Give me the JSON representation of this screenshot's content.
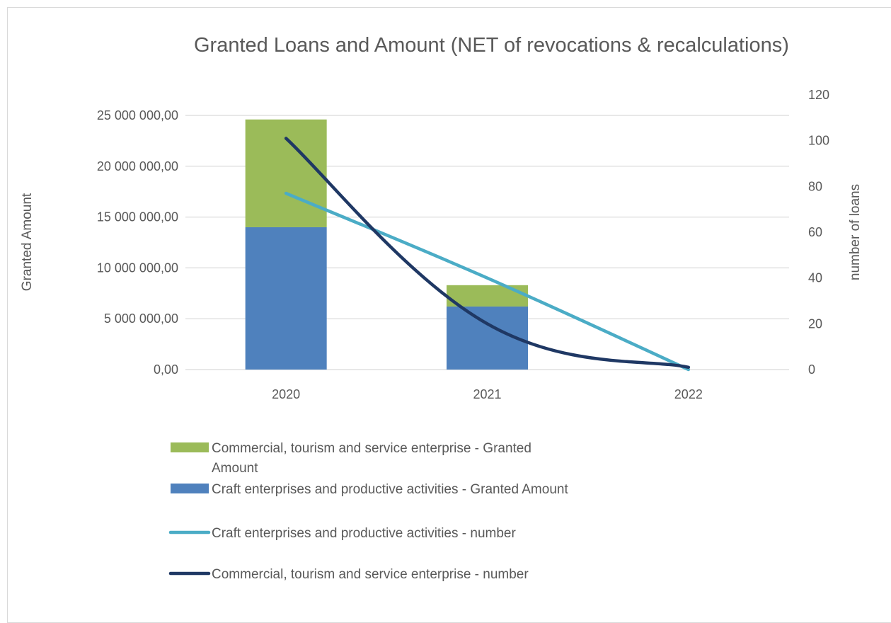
{
  "chart_data": {
    "type": "bar",
    "title": "Granted Loans and Amount (NET of revocations & recalculations)",
    "categories": [
      "2020",
      "2021",
      "2022"
    ],
    "ylabel": "Granted Amount",
    "y2label": "number of loans",
    "ylim": [
      0,
      25000000
    ],
    "y2lim": [
      0,
      120
    ],
    "y_ticks": [
      {
        "value": 0,
        "label": "0,00"
      },
      {
        "value": 5000000,
        "label": "5 000 000,00"
      },
      {
        "value": 10000000,
        "label": "10 000 000,00"
      },
      {
        "value": 15000000,
        "label": "15 000 000,00"
      },
      {
        "value": 20000000,
        "label": "20 000 000,00"
      },
      {
        "value": 25000000,
        "label": "25 000 000,00"
      }
    ],
    "y2_ticks": [
      {
        "value": 0,
        "label": "0"
      },
      {
        "value": 20,
        "label": "20"
      },
      {
        "value": 40,
        "label": "40"
      },
      {
        "value": 60,
        "label": "60"
      },
      {
        "value": 80,
        "label": "80"
      },
      {
        "value": 100,
        "label": "100"
      },
      {
        "value": 120,
        "label": "120"
      }
    ],
    "grid": true,
    "legend_position": "bottom-left",
    "series": [
      {
        "name": "Craft enterprises and productive activities - Granted Amount",
        "type": "bar",
        "stack": "amount",
        "axis": "left",
        "color": "#4f81bd",
        "values": [
          14000000,
          6200000,
          0
        ]
      },
      {
        "name": "Commercial, tourism and service enterprise - Granted Amount",
        "type": "bar",
        "stack": "amount",
        "axis": "left",
        "color": "#9bbb59",
        "values": [
          10600000,
          2100000,
          0
        ]
      },
      {
        "name": "Craft enterprises and productive activities - number",
        "type": "line",
        "axis": "right",
        "color": "#4bacc6",
        "values": [
          77,
          40,
          0
        ]
      },
      {
        "name": "Commercial, tourism and service enterprise - number",
        "type": "line",
        "axis": "right",
        "color": "#1f3864",
        "values": [
          101,
          20,
          1
        ]
      }
    ],
    "legend": [
      {
        "series": 1,
        "kind": "box",
        "lines": [
          "Commercial, tourism and service enterprise - Granted",
          "Amount"
        ]
      },
      {
        "series": 0,
        "kind": "box",
        "lines": [
          "Craft enterprises and productive activities - Granted Amount"
        ]
      },
      {
        "series": 2,
        "kind": "line",
        "lines": [
          "Craft enterprises and productive activities - number"
        ]
      },
      {
        "series": 3,
        "kind": "line",
        "lines": [
          "Commercial, tourism and service enterprise - number"
        ]
      }
    ]
  }
}
